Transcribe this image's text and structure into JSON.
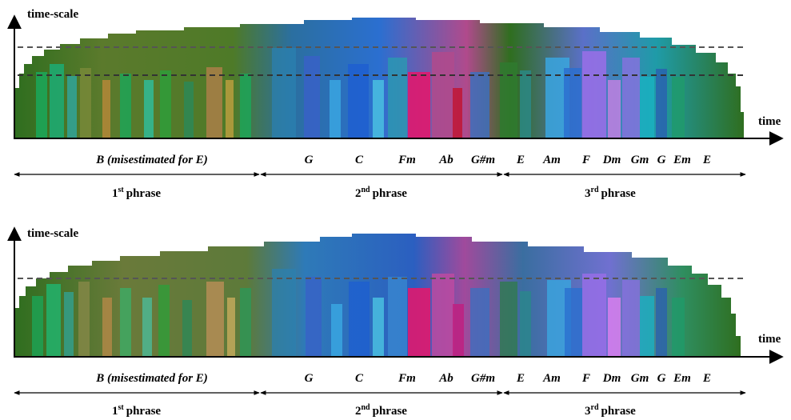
{
  "panels": [
    {
      "y_axis_label": "time-scale",
      "x_axis_label": "time",
      "dashed_lines_count": 2,
      "chord_sequence": [
        "B (misestimated for E)",
        "G",
        "C",
        "Fm",
        "Ab",
        "G#m",
        "E",
        "Am",
        "F",
        "Dm",
        "Gm",
        "G",
        "Em",
        "E"
      ],
      "phrases": [
        {
          "num": "1",
          "sup": "st",
          "word": "phrase"
        },
        {
          "num": "2",
          "sup": "nd",
          "word": "phrase"
        },
        {
          "num": "3",
          "sup": "rd",
          "word": "phrase"
        }
      ]
    },
    {
      "y_axis_label": "time-scale",
      "x_axis_label": "time",
      "dashed_lines_count": 1,
      "chord_sequence": [
        "B (misestimated for E)",
        "G",
        "C",
        "Fm",
        "Ab",
        "G#m",
        "E",
        "Am",
        "F",
        "Dm",
        "Gm",
        "G",
        "Em",
        "E"
      ],
      "phrases": [
        {
          "num": "1",
          "sup": "st",
          "word": "phrase"
        },
        {
          "num": "2",
          "sup": "nd",
          "word": "phrase"
        },
        {
          "num": "3",
          "sup": "rd",
          "word": "phrase"
        }
      ]
    }
  ],
  "colors": {
    "green_dark": "#2f6e1f",
    "olive": "#5b7a2c",
    "green_light": "#1aa85a",
    "teal": "#1f9ba8",
    "blue": "#2b6fd0",
    "blue_light": "#3aa6e0",
    "magenta": "#e0186e",
    "pink": "#b04a8c",
    "violet": "#9a6ee8",
    "dashed": "#555555"
  }
}
